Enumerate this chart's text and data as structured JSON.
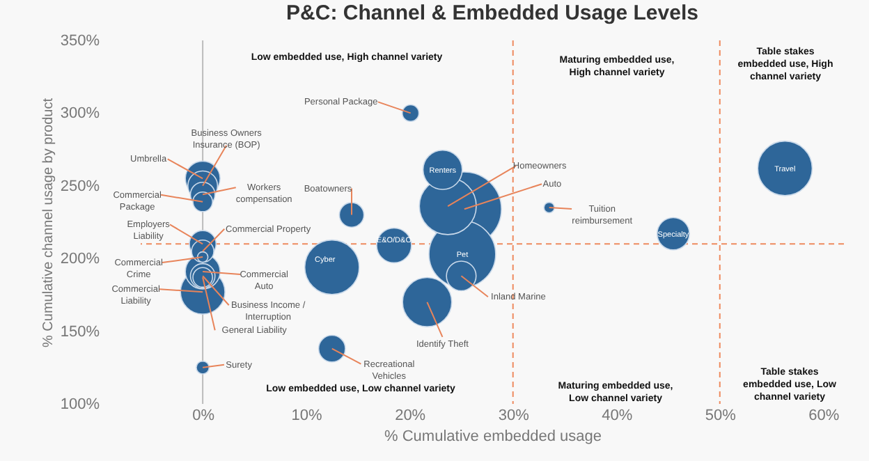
{
  "chart_data": {
    "type": "bubble",
    "title": "P&C: Channel & Embedded Usage Levels",
    "xlabel": "% Cumulative embedded usage",
    "ylabel": "% Cumulative channel usage by product",
    "x": [
      25.3,
      25.1,
      23.7,
      12.5,
      56.3,
      21.7,
      0,
      23.2,
      18.5,
      0,
      0,
      45.5,
      0,
      25,
      0,
      12.5,
      14.4,
      0,
      0,
      0,
      0,
      0,
      20.1,
      0,
      0,
      33.5
    ],
    "values": [
      234,
      203,
      236,
      194,
      262,
      170,
      177,
      261,
      209,
      255,
      191,
      217,
      250,
      188,
      210,
      138,
      230,
      244,
      188,
      205,
      239,
      187,
      300,
      125,
      201,
      235
    ],
    "sizes": [
      1.0,
      0.81,
      0.59,
      0.54,
      0.54,
      0.44,
      0.36,
      0.28,
      0.22,
      0.22,
      0.22,
      0.19,
      0.16,
      0.16,
      0.13,
      0.13,
      0.11,
      0.11,
      0.11,
      0.09,
      0.07,
      0.07,
      0.05,
      0.03,
      0.02,
      0.02
    ],
    "color": "#2e6699",
    "xlim": [
      -6,
      62
    ],
    "ylim": [
      100,
      350
    ],
    "xticks": [
      {
        "value": 0,
        "label": "0%"
      },
      {
        "value": 10,
        "label": "10%"
      },
      {
        "value": 20,
        "label": "20%"
      },
      {
        "value": 30,
        "label": "30%"
      },
      {
        "value": 40,
        "label": "40%"
      },
      {
        "value": 50,
        "label": "50%"
      },
      {
        "value": 60,
        "label": "60%"
      }
    ],
    "yticks": [
      {
        "value": 100,
        "label": "100%"
      },
      {
        "value": 150,
        "label": "150%"
      },
      {
        "value": 200,
        "label": "200%"
      },
      {
        "value": 250,
        "label": "250%"
      },
      {
        "value": 300,
        "label": "300%"
      },
      {
        "value": 350,
        "label": "350%"
      }
    ],
    "ref_lines": [
      {
        "axis": "x",
        "value": 0,
        "color": "#bbbbbb",
        "line_style": "solid"
      },
      {
        "axis": "x",
        "value": 30,
        "color": "#ee8a5e",
        "line_style": "dashed"
      },
      {
        "axis": "x",
        "value": 50,
        "color": "#ee8a5e",
        "line_style": "dashed"
      },
      {
        "axis": "y",
        "value": 210,
        "color": "#ee8a5e",
        "line_style": "dashed"
      }
    ],
    "grid": false,
    "annotations": [
      "Low embedded use, High channel variety",
      "Maturing embedded use, High channel variety",
      "Table stakes embedded use, High channel variety",
      "Low embedded use, Low channel variety",
      "Maturing embedded use, Low channel variety",
      "Table stakes embedded use, Low channel variety",
      {
        "text": "Auto",
        "x": 25.3,
        "y": 234
      },
      {
        "text": "Pet",
        "x": 25.1,
        "y": 203
      },
      {
        "text": "Homeowners",
        "x": 23.7,
        "y": 236
      },
      {
        "text": "Cyber",
        "x": 12.5,
        "y": 194
      },
      {
        "text": "Travel",
        "x": 56.3,
        "y": 262
      },
      {
        "text": "Identify Theft",
        "x": 21.7,
        "y": 170
      },
      {
        "text": "Commercial Liability",
        "x": 0,
        "y": 177
      },
      {
        "text": "Renters",
        "x": 23.2,
        "y": 261
      },
      {
        "text": "E&O/D&O",
        "x": 18.5,
        "y": 209
      },
      {
        "text": "Umbrella",
        "x": 0,
        "y": 255
      },
      {
        "text": "Commercial Auto",
        "x": 0,
        "y": 191
      },
      {
        "text": "Specialty",
        "x": 45.5,
        "y": 217
      },
      {
        "text": "Business Owners Insurance (BOP)",
        "x": 0,
        "y": 250
      },
      {
        "text": "Inland Marine",
        "x": 25,
        "y": 188
      },
      {
        "text": "Employers Liability",
        "x": 0,
        "y": 210
      },
      {
        "text": "Recreational Vehicles",
        "x": 12.5,
        "y": 138
      },
      {
        "text": "Boatowners",
        "x": 14.4,
        "y": 230
      },
      {
        "text": "Workers compensation",
        "x": 0,
        "y": 244
      },
      {
        "text": "Business Income / Interruption",
        "x": 0,
        "y": 188
      },
      {
        "text": "Commercial Property",
        "x": 0,
        "y": 205
      },
      {
        "text": "Commercial Package",
        "x": 0,
        "y": 239
      },
      {
        "text": "General Liability",
        "x": 0,
        "y": 187
      },
      {
        "text": "Personal Package",
        "x": 20.1,
        "y": 300
      },
      {
        "text": "Surety",
        "x": 0,
        "y": 125
      },
      {
        "text": "Commercial Crime",
        "x": 0,
        "y": 201
      },
      {
        "text": "Tuition reimbursement",
        "x": 33.5,
        "y": 235
      }
    ]
  }
}
